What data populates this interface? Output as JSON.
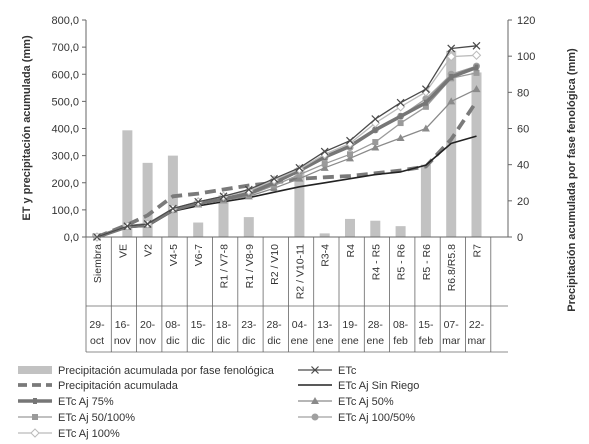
{
  "chart_data": {
    "type": "bar+line",
    "ylabel_left": "ET y precipitación acumulada (mm)",
    "ylabel_right": "Precipitación acumulada por fase fenológica (mm)",
    "ylim_left": [
      0,
      800
    ],
    "ylim_right": [
      0,
      120
    ],
    "yticks_left": [
      "0,0",
      "100,0",
      "200,0",
      "300,0",
      "400,0",
      "500,0",
      "600,0",
      "700,0",
      "800,0"
    ],
    "yticks_right": [
      "0",
      "20",
      "40",
      "60",
      "80",
      "100",
      "120"
    ],
    "categories": [
      "Siembra",
      "VE",
      "V2",
      "V4-5",
      "V6-7",
      "R1 / V7-8",
      "R1 / V8-9",
      "R2 / V10",
      "R2 / V10-11",
      "R3-4",
      "R4",
      "R4 - R5",
      "R5 - R6",
      "R5 - R6",
      "R6.8/R5.8",
      "R7"
    ],
    "dates": [
      [
        "29-",
        "oct"
      ],
      [
        "16-",
        "nov"
      ],
      [
        "20-",
        "nov"
      ],
      [
        "08-",
        "dic"
      ],
      [
        "15-",
        "dic"
      ],
      [
        "18-",
        "dic"
      ],
      [
        "23-",
        "dic"
      ],
      [
        "28-",
        "dic"
      ],
      [
        "04-",
        "ene"
      ],
      [
        "13-",
        "ene"
      ],
      [
        "19-",
        "ene"
      ],
      [
        "28-",
        "ene"
      ],
      [
        "08-",
        "feb"
      ],
      [
        "15-",
        "feb"
      ],
      [
        "07-",
        "mar"
      ],
      [
        "22-",
        "mar"
      ]
    ],
    "x_pos": [
      0,
      1.2,
      2,
      3,
      4,
      5,
      6,
      7,
      8,
      9,
      10,
      11,
      12,
      13,
      14,
      15
    ],
    "bars": {
      "name": "Precipitación acumulada por fase fenológica",
      "axis": "right",
      "values": [
        2,
        59,
        41,
        45,
        8,
        23,
        11,
        0,
        38,
        2,
        10,
        9,
        6,
        40,
        103,
        91
      ]
    },
    "series": [
      {
        "name": "ETc",
        "values": [
          0,
          40,
          48,
          105,
          130,
          150,
          175,
          215,
          255,
          315,
          355,
          435,
          495,
          545,
          695,
          705
        ]
      },
      {
        "name": "Precipitación acumulada",
        "values": [
          0,
          45,
          80,
          150,
          160,
          175,
          190,
          200,
          215,
          220,
          225,
          235,
          245,
          260,
          360,
          500
        ]
      },
      {
        "name": "ETc Aj Sin Riego",
        "values": [
          0,
          35,
          40,
          95,
          115,
          130,
          145,
          165,
          185,
          200,
          215,
          230,
          240,
          265,
          345,
          372
        ]
      },
      {
        "name": "ETc Aj 75%",
        "values": [
          0,
          38,
          45,
          100,
          125,
          140,
          160,
          200,
          245,
          295,
          335,
          395,
          445,
          495,
          590,
          625
        ]
      },
      {
        "name": "ETc Aj 50%",
        "values": [
          0,
          38,
          45,
          100,
          120,
          135,
          150,
          180,
          215,
          255,
          290,
          330,
          365,
          400,
          500,
          545
        ]
      },
      {
        "name": "ETc Aj 50/100%",
        "values": [
          0,
          38,
          45,
          100,
          120,
          135,
          155,
          190,
          230,
          270,
          305,
          350,
          420,
          480,
          585,
          605
        ]
      },
      {
        "name": "ETc Aj 100/50%",
        "values": [
          0,
          38,
          45,
          100,
          125,
          145,
          165,
          205,
          240,
          290,
          330,
          395,
          445,
          510,
          600,
          630
        ]
      },
      {
        "name": "ETc Aj 100%",
        "values": [
          0,
          40,
          48,
          105,
          130,
          150,
          170,
          210,
          250,
          305,
          345,
          420,
          480,
          535,
          665,
          670
        ]
      }
    ],
    "colors": {
      "bars": "#c2c2c2",
      "ETc": "#4a4a4a",
      "Precipitación acumulada": "#7a7a7a",
      "ETc Aj Sin Riego": "#222222",
      "ETc Aj 75%": "#767676",
      "ETc Aj 50%": "#8a8a8a",
      "ETc Aj 50/100%": "#9a9a9a",
      "ETc Aj 100/50%": "#a0a0a0",
      "ETc Aj 100%": "#bbbbbb"
    },
    "legend_position": "bottom"
  }
}
